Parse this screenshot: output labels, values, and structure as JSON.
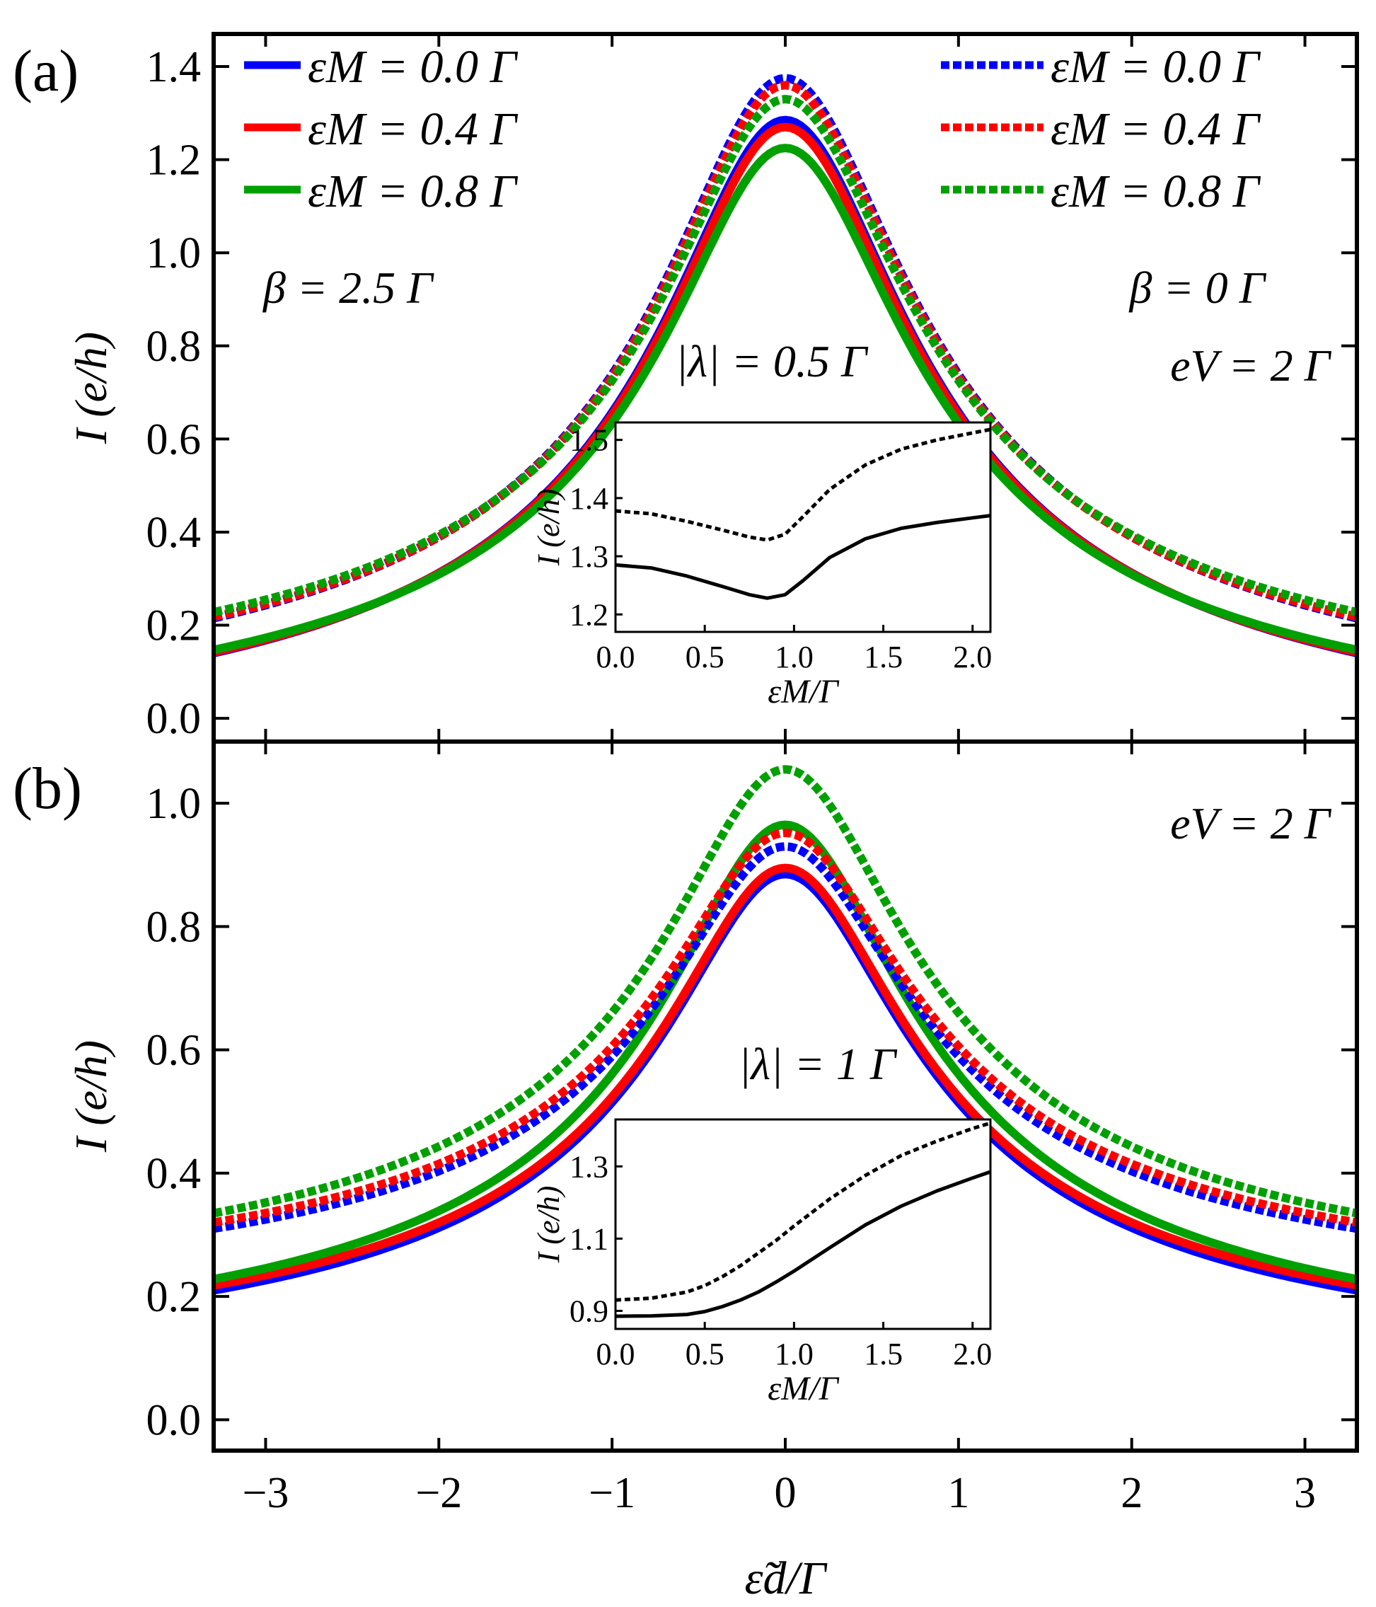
{
  "figure": {
    "x_label": "ε̃d/Γ"
  },
  "chart_data": [
    {
      "type": "line",
      "panel": "(a)",
      "xlabel": "ε̃d/Γ",
      "ylabel": "I (e/h)",
      "xlim": [
        -3.3,
        3.3
      ],
      "ylim": [
        -0.05,
        1.47
      ],
      "xticks": [
        -3,
        -2,
        -1,
        0,
        1,
        2,
        3
      ],
      "xtick_labels": [
        "−3",
        "−2",
        "−1",
        "0",
        "1",
        "2",
        "3"
      ],
      "yticks": [
        0.0,
        0.2,
        0.4,
        0.6,
        0.8,
        1.0,
        1.2,
        1.4
      ],
      "ytick_labels": [
        "0.0",
        "0.2",
        "0.4",
        "0.6",
        "0.8",
        "1.0",
        "1.2",
        "1.4"
      ],
      "series": [
        {
          "name": "εM = 0.0 Γ",
          "style": "solid",
          "color": "#0000ff",
          "beta": "2.5 Γ",
          "peak": 1.285,
          "edge": 0.14
        },
        {
          "name": "εM = 0.4 Γ",
          "style": "solid",
          "color": "#ff0000",
          "beta": "2.5 Γ",
          "peak": 1.27,
          "edge": 0.142
        },
        {
          "name": "εM = 0.8 Γ",
          "style": "solid",
          "color": "#00a000",
          "beta": "2.5 Γ",
          "peak": 1.225,
          "edge": 0.147
        },
        {
          "name": "εM = 0.0 Γ",
          "style": "dashed",
          "color": "#0000ff",
          "beta": "0 Γ",
          "peak": 1.375,
          "edge": 0.215
        },
        {
          "name": "εM = 0.4 Γ",
          "style": "dashed",
          "color": "#ff0000",
          "beta": "0 Γ",
          "peak": 1.36,
          "edge": 0.218
        },
        {
          "name": "εM = 0.8 Γ",
          "style": "dashed",
          "color": "#00a000",
          "beta": "0 Γ",
          "peak": 1.33,
          "edge": 0.228
        }
      ],
      "annotations": {
        "beta_solid": "β = 2.5 Γ",
        "beta_dashed": "β = 0 Γ",
        "bias": "eV = 2 Γ",
        "lambda": "|λ| = 0.5 Γ"
      },
      "legend_left": [
        "εM = 0.0 Γ",
        "εM = 0.4 Γ",
        "εM = 0.8 Γ"
      ],
      "legend_right": [
        "εM = 0.0 Γ",
        "εM = 0.4 Γ",
        "εM = 0.8 Γ"
      ],
      "inset": {
        "xlabel": "εM/Γ",
        "ylabel": "I (e/h)",
        "xlim": [
          0,
          2.1
        ],
        "ylim": [
          1.17,
          1.53
        ],
        "xticks": [
          0,
          0.5,
          1.0,
          1.5,
          2.0
        ],
        "xtick_labels": [
          "0.0",
          "0.5",
          "1.0",
          "1.5",
          "2.0"
        ],
        "yticks": [
          1.2,
          1.3,
          1.4,
          1.5
        ],
        "ytick_labels": [
          "1.2",
          "1.3",
          "1.4",
          "1.5"
        ],
        "series": [
          {
            "name": "β = 2.5 Γ",
            "style": "solid",
            "x": [
              0,
              0.2,
              0.4,
              0.6,
              0.75,
              0.85,
              0.95,
              1.05,
              1.2,
              1.4,
              1.6,
              1.8,
              2.0,
              2.1
            ],
            "y": [
              1.285,
              1.28,
              1.266,
              1.248,
              1.234,
              1.228,
              1.234,
              1.258,
              1.298,
              1.33,
              1.348,
              1.358,
              1.366,
              1.37
            ]
          },
          {
            "name": "β = 0 Γ",
            "style": "dashed",
            "x": [
              0,
              0.2,
              0.4,
              0.6,
              0.75,
              0.85,
              0.95,
              1.05,
              1.2,
              1.4,
              1.6,
              1.8,
              2.0,
              2.1
            ],
            "y": [
              1.378,
              1.373,
              1.36,
              1.345,
              1.333,
              1.328,
              1.338,
              1.368,
              1.415,
              1.457,
              1.484,
              1.5,
              1.512,
              1.518
            ]
          }
        ]
      }
    },
    {
      "type": "line",
      "panel": "(b)",
      "xlabel": "ε̃d/Γ",
      "ylabel": "I (e/h)",
      "xlim": [
        -3.3,
        3.3
      ],
      "ylim": [
        -0.05,
        1.1
      ],
      "xticks": [
        -3,
        -2,
        -1,
        0,
        1,
        2,
        3
      ],
      "xtick_labels": [
        "−3",
        "−2",
        "−1",
        "0",
        "1",
        "2",
        "3"
      ],
      "yticks": [
        0.0,
        0.2,
        0.4,
        0.6,
        0.8,
        1.0
      ],
      "ytick_labels": [
        "0.0",
        "0.2",
        "0.4",
        "0.6",
        "0.8",
        "1.0"
      ],
      "series": [
        {
          "name": "εM = 0.0 Γ",
          "style": "solid",
          "color": "#0000ff",
          "peak": 0.885,
          "edge": 0.21
        },
        {
          "name": "εM = 0.4 Γ",
          "style": "solid",
          "color": "#ff0000",
          "peak": 0.895,
          "edge": 0.218
        },
        {
          "name": "εM = 0.8 Γ",
          "style": "solid",
          "color": "#00a000",
          "peak": 0.965,
          "edge": 0.228
        },
        {
          "name": "εM = 0.0 Γ",
          "style": "dashed",
          "color": "#0000ff",
          "peak": 0.93,
          "edge": 0.31
        },
        {
          "name": "εM = 0.4 Γ",
          "style": "dashed",
          "color": "#ff0000",
          "peak": 0.952,
          "edge": 0.32
        },
        {
          "name": "εM = 0.8 Γ",
          "style": "dashed",
          "color": "#00a000",
          "peak": 1.055,
          "edge": 0.335
        }
      ],
      "annotations": {
        "bias": "eV = 2 Γ",
        "lambda": "|λ| = 1 Γ"
      },
      "inset": {
        "xlabel": "εM/Γ",
        "ylabel": "I (e/h)",
        "xlim": [
          0,
          2.1
        ],
        "ylim": [
          0.85,
          1.43
        ],
        "xticks": [
          0,
          0.5,
          1.0,
          1.5,
          2.0
        ],
        "xtick_labels": [
          "0.0",
          "0.5",
          "1.0",
          "1.5",
          "2.0"
        ],
        "yticks": [
          0.9,
          1.1,
          1.3
        ],
        "ytick_labels": [
          "0.9",
          "1.1",
          "1.3"
        ],
        "series": [
          {
            "name": "β = 2.5 Γ",
            "style": "solid",
            "x": [
              0,
              0.2,
              0.4,
              0.5,
              0.6,
              0.7,
              0.8,
              0.9,
              1.0,
              1.2,
              1.4,
              1.6,
              1.8,
              2.0,
              2.1
            ],
            "y": [
              0.885,
              0.886,
              0.89,
              0.898,
              0.912,
              0.93,
              0.952,
              0.98,
              1.01,
              1.075,
              1.138,
              1.19,
              1.232,
              1.268,
              1.285
            ]
          },
          {
            "name": "β = 0 Γ",
            "style": "dashed",
            "x": [
              0,
              0.2,
              0.4,
              0.5,
              0.6,
              0.7,
              0.8,
              0.9,
              1.0,
              1.2,
              1.4,
              1.6,
              1.8,
              2.0,
              2.1
            ],
            "y": [
              0.93,
              0.935,
              0.952,
              0.97,
              0.995,
              1.025,
              1.06,
              1.095,
              1.135,
              1.21,
              1.275,
              1.33,
              1.37,
              1.405,
              1.42
            ]
          }
        ]
      }
    }
  ]
}
